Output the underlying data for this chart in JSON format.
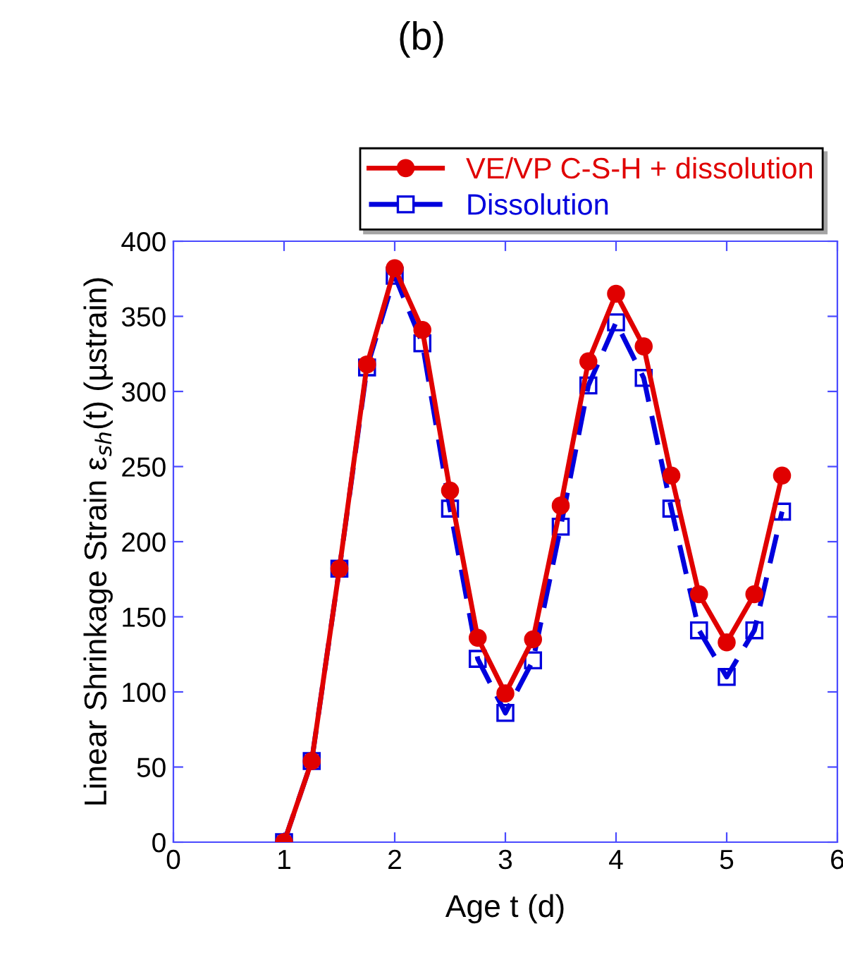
{
  "chart_data": {
    "type": "line",
    "title": "(b)",
    "xlabel": "Age t (d)",
    "ylabel": "Linear Shrinkage Strain ε$_{sh}$(t) (µstrain)",
    "x": [
      1,
      1.25,
      1.5,
      1.75,
      2,
      2.25,
      2.5,
      2.75,
      3,
      3.25,
      3.5,
      3.75,
      4,
      4.25,
      4.5,
      4.75,
      5,
      5.25,
      5.5
    ],
    "series": [
      {
        "name": "VE/VP C-S-H + dissolution",
        "color": "#e00000",
        "marker": "circle",
        "line_style": "solid",
        "values": [
          0,
          54,
          182,
          318,
          382,
          341,
          234,
          136,
          99,
          135,
          224,
          320,
          365,
          330,
          244,
          165,
          133,
          165,
          244
        ]
      },
      {
        "name": "Dissolution",
        "color": "#0000dd",
        "marker": "square",
        "line_style": "dashed",
        "values": [
          0,
          54,
          182,
          316,
          377,
          332,
          222,
          122,
          86,
          121,
          210,
          304,
          346,
          309,
          222,
          141,
          110,
          141,
          220
        ]
      }
    ],
    "xlim": [
      0,
      6
    ],
    "xticks": [
      0,
      1,
      2,
      3,
      4,
      5,
      6
    ],
    "ylim": [
      0,
      400
    ],
    "yticks": [
      0,
      50,
      100,
      150,
      200,
      250,
      300,
      350,
      400
    ],
    "grid": false,
    "legend": "top right"
  }
}
